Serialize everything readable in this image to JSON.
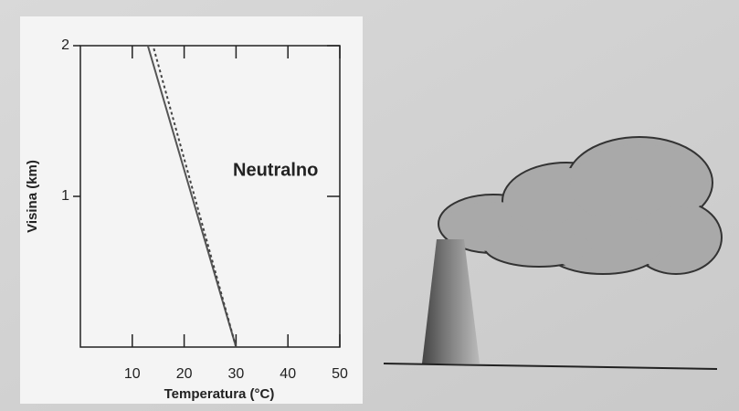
{
  "chart_data": {
    "type": "line",
    "annotation": "Neutralno",
    "x_label": "Temperatura (°C)",
    "y_label": "Visina (km)",
    "xlim": [
      0,
      50
    ],
    "xticks": [
      10,
      20,
      30,
      40,
      50
    ],
    "ylim": [
      0,
      2
    ],
    "yticks": [
      1,
      2
    ],
    "series": [
      {
        "x": [
          30,
          13
        ],
        "values": [
          0,
          2
        ],
        "color": "#555555",
        "dashed": false
      },
      {
        "x": [
          30,
          14
        ],
        "values": [
          0,
          2
        ],
        "color": "#444444",
        "dashed": true
      }
    ]
  }
}
